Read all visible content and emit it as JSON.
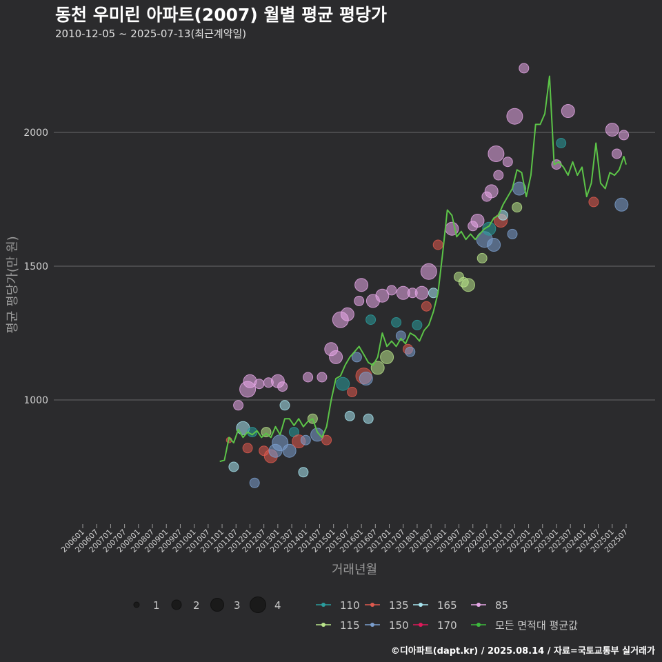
{
  "title": "동천 우미린 아파트(2007) 월별 평균 평당가",
  "subtitle": "2010-12-05 ~ 2025-07-13(최근계약일)",
  "footer": "©디아파트(dapt.kr) / 2025.08.14 / 자료=국토교통부 실거래가",
  "chart_data": {
    "type": "scatter",
    "xlabel": "거래년월",
    "ylabel": "평균 평당가(만 원)",
    "ylim": [
      520,
      2270
    ],
    "y_ticks": [
      1000,
      1500,
      2000
    ],
    "x_tick_labels": [
      "200601",
      "200607",
      "200701",
      "200707",
      "200801",
      "200807",
      "200901",
      "200907",
      "201001",
      "201007",
      "201101",
      "201107",
      "201201",
      "201207",
      "201301",
      "201307",
      "201401",
      "201407",
      "201501",
      "201507",
      "201601",
      "201607",
      "201701",
      "201707",
      "201801",
      "201807",
      "201901",
      "201907",
      "202001",
      "202007",
      "202101",
      "202107",
      "202201",
      "202207",
      "202301",
      "202307",
      "202401",
      "202407",
      "202501",
      "202507"
    ],
    "size_legend": [
      {
        "label": "1",
        "size": 1
      },
      {
        "label": "2",
        "size": 2
      },
      {
        "label": "3",
        "size": 3
      },
      {
        "label": "4",
        "size": 4
      }
    ],
    "series_legend": [
      {
        "name": "110",
        "color": "#2a9d9d"
      },
      {
        "name": "135",
        "color": "#e05a4e"
      },
      {
        "name": "165",
        "color": "#a8e6f0"
      },
      {
        "name": "85",
        "color": "#e7a7e8"
      },
      {
        "name": "115",
        "color": "#b9e58a"
      },
      {
        "name": "150",
        "color": "#7b9fce"
      },
      {
        "name": "170",
        "color": "#e0195a"
      },
      {
        "name": "모든 면적대 평균값",
        "color": "#3dbb3d"
      }
    ],
    "average_line": {
      "name": "모든 면적대 평균값",
      "color": "#5cc448",
      "points": [
        [
          "2010-12",
          770
        ],
        [
          "2011-02",
          775
        ],
        [
          "2011-04",
          860
        ],
        [
          "2011-06",
          840
        ],
        [
          "2011-08",
          890
        ],
        [
          "2011-10",
          860
        ],
        [
          "2011-12",
          880
        ],
        [
          "2012-02",
          870
        ],
        [
          "2012-04",
          885
        ],
        [
          "2012-06",
          860
        ],
        [
          "2012-08",
          875
        ],
        [
          "2012-10",
          860
        ],
        [
          "2012-12",
          900
        ],
        [
          "2013-02",
          870
        ],
        [
          "2013-04",
          930
        ],
        [
          "2013-06",
          930
        ],
        [
          "2013-08",
          905
        ],
        [
          "2013-10",
          930
        ],
        [
          "2013-12",
          900
        ],
        [
          "2014-02",
          920
        ],
        [
          "2014-04",
          930
        ],
        [
          "2014-06",
          880
        ],
        [
          "2014-08",
          860
        ],
        [
          "2014-10",
          900
        ],
        [
          "2014-12",
          1000
        ],
        [
          "2015-02",
          1080
        ],
        [
          "2015-04",
          1090
        ],
        [
          "2015-06",
          1130
        ],
        [
          "2015-08",
          1160
        ],
        [
          "2015-10",
          1180
        ],
        [
          "2015-12",
          1200
        ],
        [
          "2016-02",
          1170
        ],
        [
          "2016-04",
          1140
        ],
        [
          "2016-06",
          1130
        ],
        [
          "2016-08",
          1160
        ],
        [
          "2016-10",
          1250
        ],
        [
          "2016-12",
          1200
        ],
        [
          "2017-02",
          1220
        ],
        [
          "2017-04",
          1200
        ],
        [
          "2017-06",
          1230
        ],
        [
          "2017-08",
          1210
        ],
        [
          "2017-10",
          1250
        ],
        [
          "2017-12",
          1240
        ],
        [
          "2018-02",
          1220
        ],
        [
          "2018-04",
          1260
        ],
        [
          "2018-06",
          1280
        ],
        [
          "2018-08",
          1330
        ],
        [
          "2018-10",
          1400
        ],
        [
          "2018-12",
          1550
        ],
        [
          "2019-02",
          1710
        ],
        [
          "2019-04",
          1690
        ],
        [
          "2019-06",
          1610
        ],
        [
          "2019-08",
          1630
        ],
        [
          "2019-10",
          1600
        ],
        [
          "2019-12",
          1620
        ],
        [
          "2020-02",
          1600
        ],
        [
          "2020-04",
          1620
        ],
        [
          "2020-06",
          1640
        ],
        [
          "2020-08",
          1650
        ],
        [
          "2020-10",
          1680
        ],
        [
          "2020-12",
          1690
        ],
        [
          "2021-02",
          1730
        ],
        [
          "2021-04",
          1760
        ],
        [
          "2021-06",
          1790
        ],
        [
          "2021-08",
          1860
        ],
        [
          "2021-10",
          1850
        ],
        [
          "2021-12",
          1760
        ],
        [
          "2022-02",
          1840
        ],
        [
          "2022-04",
          2030
        ],
        [
          "2022-06",
          2030
        ],
        [
          "2022-08",
          2070
        ],
        [
          "2022-10",
          2210
        ],
        [
          "2022-12",
          1880
        ],
        [
          "2023-02",
          1890
        ],
        [
          "2023-04",
          1870
        ],
        [
          "2023-06",
          1840
        ],
        [
          "2023-08",
          1890
        ],
        [
          "2023-10",
          1840
        ],
        [
          "2023-12",
          1870
        ],
        [
          "2024-02",
          1760
        ],
        [
          "2024-04",
          1810
        ],
        [
          "2024-06",
          1960
        ],
        [
          "2024-08",
          1810
        ],
        [
          "2024-10",
          1790
        ],
        [
          "2024-12",
          1850
        ],
        [
          "2025-02",
          1840
        ],
        [
          "2025-04",
          1860
        ],
        [
          "2025-06",
          1910
        ],
        [
          "2025-07",
          1880
        ]
      ]
    },
    "bubbles": [
      [
        "2011-04",
        850,
        1,
        "135"
      ],
      [
        "2011-06",
        750,
        2,
        "165"
      ],
      [
        "2011-08",
        980,
        2,
        "85"
      ],
      [
        "2011-10",
        895,
        3,
        "165"
      ],
      [
        "2011-12",
        1040,
        4,
        "85"
      ],
      [
        "2011-12",
        820,
        2,
        "135"
      ],
      [
        "2012-01",
        1070,
        3,
        "85"
      ],
      [
        "2012-02",
        880,
        2,
        "110"
      ],
      [
        "2012-03",
        690,
        2,
        "150"
      ],
      [
        "2012-05",
        1060,
        2,
        "85"
      ],
      [
        "2012-07",
        810,
        2,
        "135"
      ],
      [
        "2012-08",
        880,
        2,
        "115"
      ],
      [
        "2012-09",
        1065,
        2,
        "85"
      ],
      [
        "2012-10",
        790,
        3,
        "135"
      ],
      [
        "2012-12",
        810,
        3,
        "150"
      ],
      [
        "2013-01",
        1070,
        3,
        "85"
      ],
      [
        "2013-02",
        840,
        4,
        "150"
      ],
      [
        "2013-03",
        1050,
        2,
        "85"
      ],
      [
        "2013-04",
        980,
        2,
        "165"
      ],
      [
        "2013-06",
        810,
        3,
        "150"
      ],
      [
        "2013-08",
        880,
        2,
        "110"
      ],
      [
        "2013-10",
        845,
        3,
        "135"
      ],
      [
        "2013-12",
        730,
        2,
        "165"
      ],
      [
        "2014-01",
        850,
        2,
        "150"
      ],
      [
        "2014-02",
        1085,
        2,
        "85"
      ],
      [
        "2014-04",
        930,
        2,
        "115"
      ],
      [
        "2014-06",
        870,
        3,
        "150"
      ],
      [
        "2014-08",
        1085,
        2,
        "85"
      ],
      [
        "2014-10",
        850,
        2,
        "135"
      ],
      [
        "2014-12",
        1190,
        3,
        "85"
      ],
      [
        "2015-02",
        1160,
        3,
        "85"
      ],
      [
        "2015-04",
        1300,
        4,
        "85"
      ],
      [
        "2015-05",
        1060,
        3,
        "110"
      ],
      [
        "2015-07",
        1320,
        3,
        "85"
      ],
      [
        "2015-08",
        940,
        2,
        "165"
      ],
      [
        "2015-09",
        1030,
        2,
        "135"
      ],
      [
        "2015-11",
        1160,
        2,
        "150"
      ],
      [
        "2015-12",
        1370,
        2,
        "85"
      ],
      [
        "2016-01",
        1430,
        3,
        "85"
      ],
      [
        "2016-02",
        1090,
        4,
        "135"
      ],
      [
        "2016-03",
        1080,
        3,
        "150"
      ],
      [
        "2016-04",
        930,
        2,
        "165"
      ],
      [
        "2016-05",
        1300,
        2,
        "110"
      ],
      [
        "2016-06",
        1370,
        3,
        "85"
      ],
      [
        "2016-08",
        1120,
        3,
        "115"
      ],
      [
        "2016-10",
        1390,
        3,
        "85"
      ],
      [
        "2016-12",
        1160,
        3,
        "115"
      ],
      [
        "2017-02",
        1410,
        2,
        "85"
      ],
      [
        "2017-04",
        1290,
        2,
        "110"
      ],
      [
        "2017-06",
        1240,
        2,
        "150"
      ],
      [
        "2017-07",
        1400,
        3,
        "85"
      ],
      [
        "2017-09",
        1190,
        2,
        "135"
      ],
      [
        "2017-10",
        1180,
        2,
        "150"
      ],
      [
        "2017-11",
        1400,
        2,
        "85"
      ],
      [
        "2018-01",
        1280,
        2,
        "110"
      ],
      [
        "2018-03",
        1400,
        3,
        "85"
      ],
      [
        "2018-05",
        1350,
        2,
        "135"
      ],
      [
        "2018-06",
        1480,
        4,
        "85"
      ],
      [
        "2018-08",
        1400,
        2,
        "165"
      ],
      [
        "2018-10",
        1580,
        2,
        "135"
      ],
      [
        "2019-04",
        1640,
        3,
        "85"
      ],
      [
        "2019-07",
        1460,
        2,
        "115"
      ],
      [
        "2019-09",
        1440,
        2,
        "115"
      ],
      [
        "2019-11",
        1430,
        3,
        "115"
      ],
      [
        "2020-01",
        1650,
        2,
        "85"
      ],
      [
        "2020-03",
        1670,
        3,
        "85"
      ],
      [
        "2020-05",
        1530,
        2,
        "115"
      ],
      [
        "2020-06",
        1600,
        4,
        "150"
      ],
      [
        "2020-07",
        1760,
        2,
        "85"
      ],
      [
        "2020-08",
        1640,
        3,
        "110"
      ],
      [
        "2020-09",
        1780,
        3,
        "85"
      ],
      [
        "2020-10",
        1580,
        3,
        "150"
      ],
      [
        "2020-11",
        1920,
        4,
        "85"
      ],
      [
        "2020-12",
        1840,
        2,
        "85"
      ],
      [
        "2021-01",
        1670,
        3,
        "135"
      ],
      [
        "2021-02",
        1690,
        2,
        "165"
      ],
      [
        "2021-04",
        1890,
        2,
        "85"
      ],
      [
        "2021-06",
        1620,
        2,
        "150"
      ],
      [
        "2021-07",
        2060,
        4,
        "85"
      ],
      [
        "2021-08",
        1720,
        2,
        "115"
      ],
      [
        "2021-09",
        1790,
        3,
        "150"
      ],
      [
        "2021-11",
        2240,
        2,
        "85"
      ],
      [
        "2023-01",
        1880,
        2,
        "85"
      ],
      [
        "2023-03",
        1960,
        2,
        "110"
      ],
      [
        "2023-06",
        2080,
        3,
        "85"
      ],
      [
        "2024-05",
        1740,
        2,
        "135"
      ],
      [
        "2025-01",
        2010,
        3,
        "85"
      ],
      [
        "2025-03",
        1920,
        2,
        "85"
      ],
      [
        "2025-05",
        1730,
        3,
        "150"
      ],
      [
        "2025-06",
        1990,
        2,
        "85"
      ]
    ]
  }
}
